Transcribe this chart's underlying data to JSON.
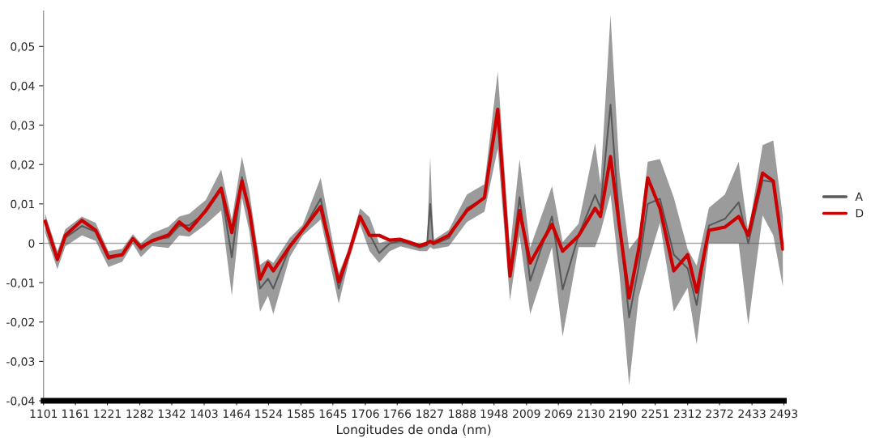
{
  "chart_data": {
    "type": "line",
    "xlabel": "Longitudes de onda (nm)",
    "x": [
      1104,
      1127,
      1142,
      1173,
      1199,
      1223,
      1249,
      1269,
      1284,
      1305,
      1336,
      1356,
      1375,
      1406,
      1435,
      1455,
      1474,
      1488,
      1508,
      1523,
      1533,
      1564,
      1588,
      1622,
      1656,
      1676,
      1696,
      1714,
      1732,
      1752,
      1772,
      1808,
      1822,
      1828,
      1834,
      1863,
      1897,
      1930,
      1955,
      1978,
      1996,
      2016,
      2057,
      2077,
      2107,
      2138,
      2148,
      2167,
      2184,
      2202,
      2220,
      2237,
      2260,
      2286,
      2312,
      2329,
      2352,
      2382,
      2408,
      2426,
      2453,
      2473,
      2491
    ],
    "series": [
      {
        "name": "A",
        "color": "#595959",
        "values": [
          0.0051,
          -0.0043,
          0.0014,
          0.0044,
          0.0029,
          -0.004,
          -0.003,
          0.001,
          -0.0017,
          0.0009,
          0.0015,
          0.0044,
          0.0046,
          0.0079,
          0.0135,
          -0.0036,
          0.0168,
          0.008,
          -0.0115,
          -0.009,
          -0.0115,
          -0.001,
          0.0032,
          0.0113,
          -0.0115,
          -0.0025,
          0.0068,
          0.0023,
          -0.0025,
          0,
          0.0005,
          -0.0011,
          -0.0005,
          0.01,
          -0.0003,
          0.0013,
          0.0089,
          0.0115,
          0.0338,
          -0.008,
          0.0117,
          -0.0095,
          0.0068,
          -0.0117,
          0.002,
          0.0123,
          0.009,
          0.0352,
          0.005,
          -0.0188,
          -0.006,
          0.01,
          0.0113,
          -0.0029,
          -0.0064,
          -0.0157,
          0.0045,
          0.0062,
          0.0104,
          0,
          0.016,
          0.0155,
          -0.0015
        ],
        "lower": [
          0.0027,
          -0.0066,
          -0.0008,
          0.002,
          0.0006,
          -0.006,
          -0.0047,
          -0.0002,
          -0.0035,
          -0.0007,
          -0.0012,
          0.002,
          0.0017,
          0.0048,
          0.0083,
          -0.0133,
          0.0116,
          0.003,
          -0.0174,
          -0.0133,
          -0.018,
          -0.0035,
          0.0019,
          0.006,
          -0.0153,
          -0.004,
          0.0048,
          -0.002,
          -0.005,
          -0.002,
          -0.0008,
          -0.002,
          -0.002,
          -0.001,
          -0.0015,
          -0.0008,
          0.0054,
          0.008,
          0.024,
          -0.0145,
          0.002,
          -0.018,
          -0.001,
          -0.0237,
          -0.001,
          -0.001,
          0.0027,
          0.0124,
          -0.008,
          -0.0361,
          -0.0137,
          -0.005,
          0.0052,
          -0.0174,
          -0.0113,
          -0.0257,
          0,
          0,
          0,
          -0.0207,
          0.0071,
          0.002,
          -0.011
        ],
        "upper": [
          0.0075,
          -0.002,
          0.0036,
          0.0068,
          0.0052,
          -0.002,
          -0.0014,
          0.0023,
          0,
          0.0025,
          0.0042,
          0.0068,
          0.0075,
          0.011,
          0.0187,
          0.006,
          0.022,
          0.013,
          -0.0055,
          -0.004,
          -0.005,
          0.0014,
          0.0046,
          0.0166,
          -0.0076,
          -0.0012,
          0.0089,
          0.0066,
          0,
          0.0008,
          0.0014,
          -0.0002,
          0.0005,
          0.022,
          0.0008,
          0.0034,
          0.0124,
          0.015,
          0.0436,
          -0.0015,
          0.0214,
          -0.0011,
          0.0145,
          0.0003,
          0.005,
          0.0255,
          0.015,
          0.058,
          0.018,
          -0.0015,
          0.0017,
          0.0207,
          0.0214,
          0.0116,
          -0.0015,
          -0.0057,
          0.009,
          0.0124,
          0.0207,
          0.0027,
          0.0249,
          0.0261,
          0.0067
        ]
      },
      {
        "name": "D",
        "color": "#cc0000",
        "values": [
          0.0056,
          -0.0041,
          0.002,
          0.0058,
          0.0033,
          -0.0035,
          -0.0029,
          0.0012,
          -0.001,
          0.0006,
          0.0021,
          0.0054,
          0.0033,
          0.0083,
          0.014,
          0.0027,
          0.0158,
          0.0083,
          -0.0091,
          -0.005,
          -0.007,
          -0.0008,
          0.0033,
          0.0093,
          -0.0098,
          -0.0021,
          0.0068,
          0.002,
          0.002,
          0.0008,
          0.001,
          -0.0006,
          0,
          0.0005,
          0,
          0.002,
          0.0083,
          0.0116,
          0.034,
          -0.0083,
          0.0083,
          -0.005,
          0.0048,
          -0.002,
          0.0019,
          0.0089,
          0.0068,
          0.022,
          0.0041,
          -0.0139,
          -0.0015,
          0.0166,
          0.0089,
          -0.007,
          -0.0029,
          -0.0124,
          0.0033,
          0.0041,
          0.0068,
          0.002,
          0.0178,
          0.0158,
          -0.0015
        ]
      }
    ],
    "xlim": [
      1101,
      2493
    ],
    "xticks": [
      1101,
      1161,
      1221,
      1282,
      1342,
      1403,
      1464,
      1524,
      1585,
      1645,
      1706,
      1766,
      1827,
      1888,
      1948,
      2009,
      2069,
      2130,
      2190,
      2251,
      2312,
      2372,
      2433,
      2493
    ],
    "ylim": [
      -0.04,
      0.059
    ],
    "yticks": [
      {
        "value": -0.04,
        "label": "-0,04"
      },
      {
        "value": -0.03,
        "label": "-0,03"
      },
      {
        "value": -0.02,
        "label": "-0,02"
      },
      {
        "value": -0.01,
        "label": "-0,01"
      },
      {
        "value": 0,
        "label": "0"
      },
      {
        "value": 0.01,
        "label": "0,01"
      },
      {
        "value": 0.02,
        "label": "0,02"
      },
      {
        "value": 0.03,
        "label": "0,03"
      },
      {
        "value": 0.04,
        "label": "0,04"
      },
      {
        "value": 0.05,
        "label": "0,05"
      }
    ],
    "ref_lines": [
      {
        "axis": "y",
        "value": 0,
        "color": "#a6a6a6"
      }
    ],
    "grid": false,
    "legend": "right",
    "marker": "none",
    "line_style": "solid"
  }
}
